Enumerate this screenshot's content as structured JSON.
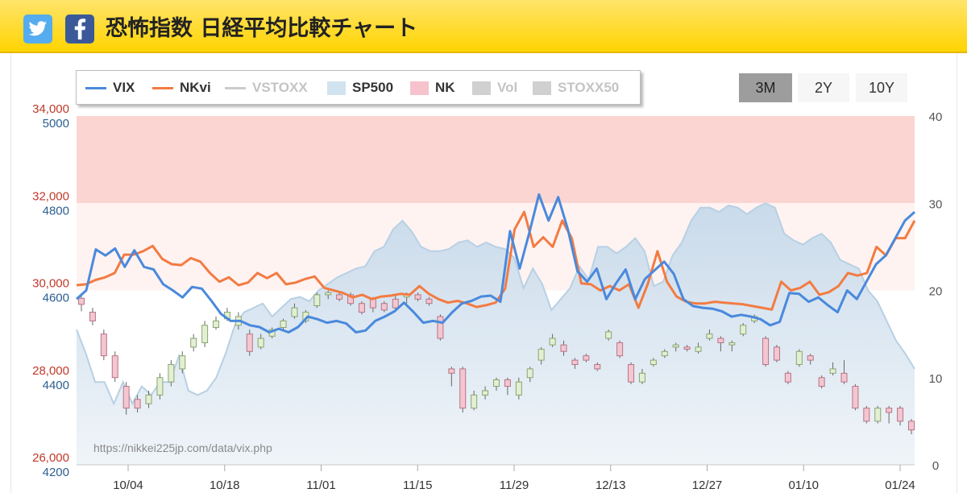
{
  "header": {
    "title": "恐怖指数 日経平均比較チャート",
    "twitter_icon": "twitter-icon",
    "facebook_icon": "facebook-icon",
    "color": "#ffd400"
  },
  "legend": [
    {
      "label": "VIX",
      "kind": "line",
      "color": "#4a89dc",
      "text_color": "#333333"
    },
    {
      "label": "NKvi",
      "kind": "line",
      "color": "#f37b42",
      "text_color": "#333333"
    },
    {
      "label": "VSTOXX",
      "kind": "line",
      "color": "#cccccc",
      "text_color": "#c4c4c4"
    },
    {
      "label": "SP500",
      "kind": "box",
      "color": "#d2e3f0",
      "text_color": "#333333"
    },
    {
      "label": "NK",
      "kind": "box",
      "color": "#f6c3cc",
      "text_color": "#333333"
    },
    {
      "label": "Vol",
      "kind": "box",
      "color": "#d0d0d0",
      "text_color": "#c4c4c4"
    },
    {
      "label": "STOXX50",
      "kind": "box",
      "color": "#d0d0d0",
      "text_color": "#c4c4c4"
    }
  ],
  "range_buttons": [
    {
      "label": "3M",
      "active": true
    },
    {
      "label": "2Y",
      "active": false
    },
    {
      "label": "10Y",
      "active": false
    }
  ],
  "source": "https://nikkei225jp.com/data/vix.php",
  "chart_data": {
    "type": "line",
    "x_tick_labels": [
      "10/04",
      "10/18",
      "11/01",
      "11/15",
      "11/29",
      "12/13",
      "12/27",
      "01/10",
      "01/24"
    ],
    "left_axis_nk": {
      "ticks": [
        26000,
        28000,
        30000,
        32000,
        34000
      ],
      "labels": [
        "26,000",
        "28,000",
        "30,000",
        "32,000",
        "34,000"
      ],
      "range": [
        26000,
        34000
      ],
      "color": "#c0392b"
    },
    "left_axis_sp500": {
      "ticks": [
        4200,
        4400,
        4600,
        4800,
        5000
      ],
      "labels": [
        "4200",
        "4400",
        "4600",
        "4800",
        "5000"
      ],
      "range": [
        4200,
        5000
      ],
      "color": "#2c5f91"
    },
    "right_axis": {
      "ticks": [
        0,
        10,
        20,
        30,
        40
      ],
      "range": [
        0,
        40
      ]
    },
    "fear_bands": [
      {
        "from": 30,
        "to": 40,
        "color": "#fbd5d2"
      },
      {
        "from": 20,
        "to": 30,
        "color": "#fef3f1"
      }
    ],
    "series": [
      {
        "name": "VIX",
        "color": "#4a89dc",
        "values": [
          19.0,
          20.0,
          24.7,
          24.0,
          24.8,
          22.7,
          24.6,
          22.7,
          22.4,
          20.7,
          20.0,
          19.2,
          20.4,
          20.2,
          18.8,
          17.3,
          16.5,
          16.5,
          16.0,
          15.8,
          15.2,
          15.6,
          15.2,
          15.8,
          17.0,
          16.7,
          16.3,
          16.5,
          16.2,
          15.2,
          15.4,
          16.5,
          17.0,
          17.6,
          18.6,
          17.5,
          16.3,
          16.5,
          16.3,
          17.5,
          18.5,
          18.8,
          19.3,
          19.4,
          18.7,
          26.8,
          22.5,
          26.6,
          31.0,
          28.0,
          30.7,
          27.0,
          22.2,
          21.0,
          22.5,
          19.0,
          20.8,
          22.4,
          19.0,
          21.3,
          22.3,
          23.3,
          21.9,
          19.0,
          18.2,
          18.0,
          17.9,
          17.6,
          17.0,
          17.2,
          17.0,
          16.7,
          16.0,
          16.4,
          19.7,
          19.6,
          18.7,
          19.2,
          18.3,
          17.5,
          20.0,
          19.0,
          21.0,
          23.0,
          24.0,
          26.0,
          28.0,
          29.0
        ]
      },
      {
        "name": "NKvi",
        "color": "#f37b42",
        "values": [
          20.6,
          20.7,
          21.2,
          21.5,
          22.0,
          24.1,
          24.1,
          24.5,
          25.1,
          23.6,
          23.0,
          22.9,
          23.7,
          23.3,
          22.0,
          21.0,
          21.5,
          20.6,
          20.9,
          22.0,
          21.4,
          22.0,
          20.7,
          20.9,
          21.3,
          21.6,
          20.3,
          20.0,
          19.7,
          19.2,
          19.5,
          19.0,
          19.3,
          19.4,
          19.6,
          19.5,
          20.5,
          19.6,
          19.0,
          18.6,
          18.8,
          18.5,
          18.1,
          18.3,
          18.6,
          20.2,
          27.0,
          29.0,
          25.0,
          26.1,
          25.0,
          28.0,
          26.0,
          20.8,
          20.7,
          20.0,
          20.5,
          20.0,
          20.7,
          18.0,
          20.8,
          24.5,
          21.0,
          19.3,
          18.7,
          18.5,
          18.5,
          18.7,
          18.6,
          18.5,
          18.4,
          18.2,
          18.0,
          17.8,
          21.0,
          20.0,
          20.3,
          21.0,
          19.5,
          19.8,
          20.5,
          22.0,
          21.7,
          22.0,
          25.0,
          24.0,
          26.0,
          26.0,
          28.0
        ]
      },
      {
        "name": "SP500",
        "color": "#c3d9ea",
        "values": [
          4510,
          4455,
          4390,
          4390,
          4340,
          4390,
          4340,
          4380,
          4360,
          4390,
          4390,
          4450,
          4370,
          4360,
          4370,
          4400,
          4455,
          4520,
          4550,
          4560,
          4570,
          4540,
          4560,
          4580,
          4585,
          4575,
          4600,
          4615,
          4630,
          4640,
          4650,
          4655,
          4690,
          4700,
          4740,
          4760,
          4735,
          4700,
          4690,
          4690,
          4695,
          4710,
          4715,
          4700,
          4710,
          4700,
          4695,
          4675,
          4605,
          4650,
          4615,
          4555,
          4580,
          4605,
          4655,
          4625,
          4700,
          4700,
          4685,
          4700,
          4720,
          4690,
          4610,
          4620,
          4680,
          4710,
          4760,
          4790,
          4790,
          4780,
          4795,
          4790,
          4775,
          4790,
          4800,
          4790,
          4730,
          4715,
          4705,
          4720,
          4730,
          4710,
          4670,
          4660,
          4650,
          4600,
          4575,
          4530,
          4485,
          4455,
          4420
        ]
      },
      {
        "name": "NK",
        "candles": [
          [
            29820,
            29680,
            29520,
            29900
          ],
          [
            29500,
            29300,
            29200,
            29600
          ],
          [
            29000,
            28500,
            28400,
            29100
          ],
          [
            28500,
            28000,
            27900,
            28600
          ],
          [
            27800,
            27300,
            27150,
            27900
          ],
          [
            27500,
            27300,
            27200,
            27600
          ],
          [
            27400,
            27600,
            27300,
            27700
          ],
          [
            27600,
            28000,
            27500,
            28100
          ],
          [
            27900,
            28300,
            27800,
            28400
          ],
          [
            28200,
            28500,
            28100,
            28600
          ],
          [
            28700,
            28900,
            28600,
            29000
          ],
          [
            28800,
            29200,
            28700,
            29300
          ],
          [
            29150,
            29300,
            29100,
            29400
          ],
          [
            29350,
            29500,
            29300,
            29600
          ],
          [
            29200,
            29400,
            29100,
            29500
          ],
          [
            29000,
            28600,
            28500,
            29100
          ],
          [
            28700,
            28900,
            28650,
            29000
          ],
          [
            28950,
            29100,
            28900,
            29150
          ],
          [
            29150,
            29300,
            29100,
            29350
          ],
          [
            29400,
            29600,
            29350,
            29700
          ],
          [
            29300,
            29500,
            29250,
            29550
          ],
          [
            29650,
            29900,
            29600,
            29950
          ],
          [
            29900,
            29950,
            29800,
            30000
          ],
          [
            29900,
            29800,
            29750,
            29950
          ],
          [
            29900,
            29700,
            29650,
            29950
          ],
          [
            29700,
            29500,
            29450,
            29750
          ],
          [
            29800,
            29600,
            29500,
            29850
          ],
          [
            29700,
            29550,
            29500,
            29750
          ],
          [
            29800,
            29600,
            29550,
            29900
          ],
          [
            29850,
            29900,
            29700,
            29950
          ],
          [
            29900,
            29800,
            29750,
            29950
          ],
          [
            29800,
            29700,
            29650,
            29850
          ],
          [
            29400,
            28900,
            28850,
            29450
          ],
          [
            28200,
            28100,
            27800,
            28250
          ],
          [
            28200,
            27300,
            27200,
            28250
          ],
          [
            27300,
            27600,
            27250,
            27700
          ],
          [
            27600,
            27700,
            27500,
            27800
          ],
          [
            27800,
            27950,
            27700,
            28000
          ],
          [
            27950,
            27800,
            27600,
            28000
          ],
          [
            27600,
            27900,
            27500,
            28000
          ],
          [
            28000,
            28200,
            27900,
            28250
          ],
          [
            28400,
            28650,
            28300,
            28700
          ],
          [
            28750,
            28900,
            28700,
            29000
          ],
          [
            28750,
            28600,
            28500,
            28850
          ],
          [
            28400,
            28300,
            28200,
            28450
          ],
          [
            28500,
            28400,
            28350,
            28550
          ],
          [
            28300,
            28200,
            28150,
            28350
          ],
          [
            28900,
            29050,
            28850,
            29100
          ],
          [
            28800,
            28500,
            28450,
            28850
          ],
          [
            28300,
            27900,
            27850,
            28350
          ],
          [
            27900,
            28100,
            27850,
            28200
          ],
          [
            28300,
            28400,
            28250,
            28450
          ],
          [
            28500,
            28600,
            28450,
            28650
          ],
          [
            28700,
            28750,
            28600,
            28800
          ],
          [
            28700,
            28650,
            28600,
            28750
          ],
          [
            28600,
            28700,
            28550,
            28800
          ],
          [
            28900,
            29000,
            28850,
            29100
          ],
          [
            28900,
            28800,
            28600,
            28950
          ],
          [
            28750,
            28800,
            28600,
            28850
          ],
          [
            29000,
            29200,
            28950,
            29250
          ],
          [
            29300,
            29400,
            29250,
            29450
          ],
          [
            28900,
            28300,
            28250,
            28950
          ],
          [
            28700,
            28400,
            28350,
            28750
          ],
          [
            28100,
            27900,
            27850,
            28150
          ],
          [
            28300,
            28600,
            28250,
            28650
          ],
          [
            28500,
            28400,
            28300,
            28550
          ],
          [
            28000,
            27800,
            27750,
            28050
          ],
          [
            28100,
            28200,
            28050,
            28350
          ],
          [
            28100,
            27900,
            27850,
            28400
          ],
          [
            27800,
            27300,
            27250,
            27850
          ],
          [
            27300,
            27000,
            26950,
            27350
          ],
          [
            27000,
            27300,
            26950,
            27350
          ],
          [
            27300,
            27200,
            26950,
            27350
          ],
          [
            27300,
            27000,
            26900,
            27350
          ],
          [
            27000,
            26800,
            26700,
            27050
          ]
        ]
      }
    ]
  }
}
